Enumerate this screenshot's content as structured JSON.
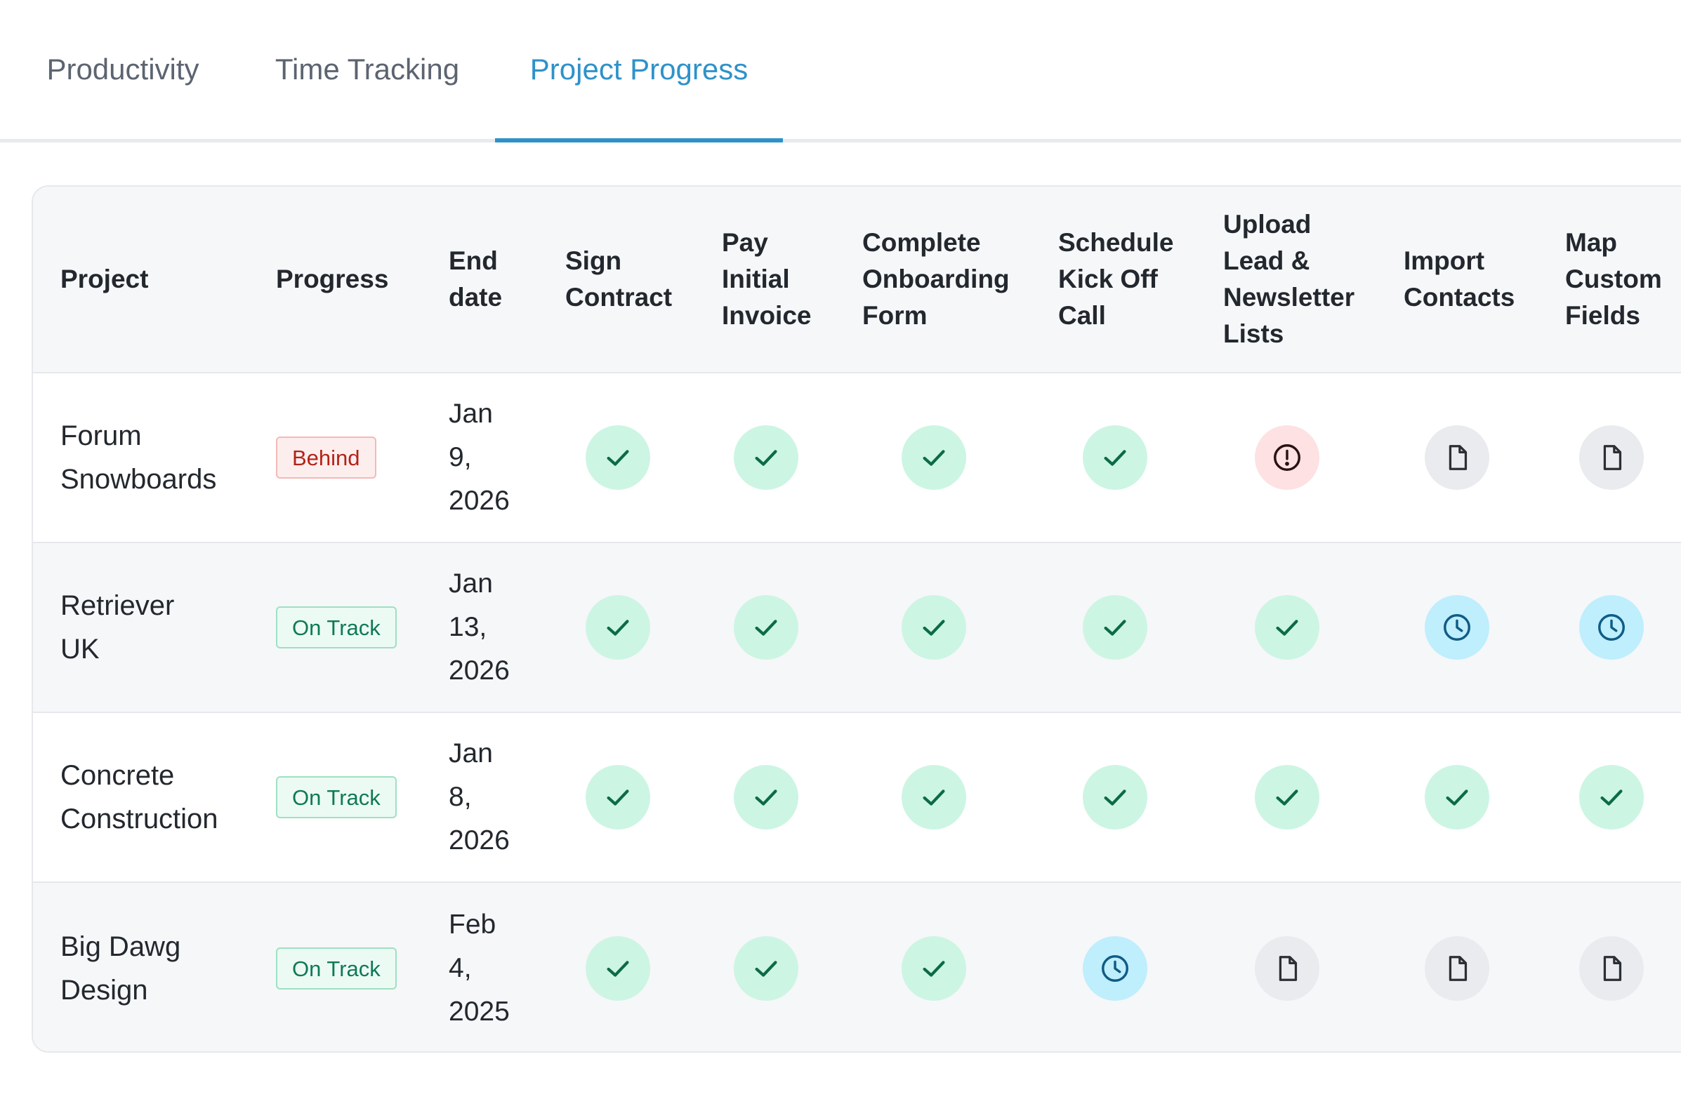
{
  "tabs": [
    {
      "label": "Productivity",
      "active": false
    },
    {
      "label": "Time Tracking",
      "active": false
    },
    {
      "label": "Project Progress",
      "active": true
    }
  ],
  "table": {
    "headers": {
      "project": "Project",
      "progress": "Progress",
      "end_date": "End\ndate",
      "sign_contract": "Sign\nContract",
      "pay_initial_invoice": "Pay\nInitial\nInvoice",
      "complete_onboarding_form": "Complete\nOnboarding\nForm",
      "schedule_kick_off_call": "Schedule\nKick Off\nCall",
      "upload_lists": "Upload\nLead &\nNewsletter\nLists",
      "import_contacts": "Import\nContacts",
      "map_custom_fields": "Map\nCustom\nFields"
    },
    "rows": [
      {
        "project": "Forum\nSnowboards",
        "progress": "Behind",
        "end_date": "Jan\n9,\n2026",
        "statuses": [
          "done",
          "done",
          "done",
          "done",
          "late",
          "todo",
          "todo"
        ]
      },
      {
        "project": "Retriever\nUK",
        "progress": "On Track",
        "end_date": "Jan\n13,\n2026",
        "statuses": [
          "done",
          "done",
          "done",
          "done",
          "done",
          "progress",
          "progress"
        ]
      },
      {
        "project": "Concrete\nConstruction",
        "progress": "On Track",
        "end_date": "Jan\n8,\n2026",
        "statuses": [
          "done",
          "done",
          "done",
          "done",
          "done",
          "done",
          "done"
        ]
      },
      {
        "project": "Big Dawg\nDesign",
        "progress": "On Track",
        "end_date": "Feb\n4,\n2025",
        "statuses": [
          "done",
          "done",
          "done",
          "progress",
          "todo",
          "todo",
          "todo"
        ]
      }
    ]
  },
  "status_icons": {
    "done": "check-icon",
    "late": "alert-icon",
    "progress": "clock-icon",
    "todo": "document-icon"
  },
  "colors": {
    "accent": "#2e92c9",
    "done_bg": "#cdf5e4",
    "late_bg": "#fde1e3",
    "progress_bg": "#bfeefd",
    "todo_bg": "#e9ebee"
  }
}
